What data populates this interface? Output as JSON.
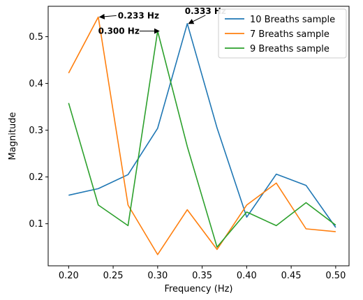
{
  "chart_data": {
    "type": "line",
    "xlabel": "Frequency (Hz)",
    "ylabel": "Magnitude",
    "xlim": [
      0.177,
      0.515
    ],
    "ylim": [
      0.01,
      0.565
    ],
    "x_ticks": [
      0.2,
      0.25,
      0.3,
      0.35,
      0.4,
      0.45,
      0.5
    ],
    "x_tick_labels": [
      "0.20",
      "0.25",
      "0.30",
      "0.35",
      "0.40",
      "0.45",
      "0.50"
    ],
    "y_ticks": [
      0.1,
      0.2,
      0.3,
      0.4,
      0.5
    ],
    "y_tick_labels": [
      "0.1",
      "0.2",
      "0.3",
      "0.4",
      "0.5"
    ],
    "grid": false,
    "legend_position": "top-right",
    "x": [
      0.2,
      0.2333,
      0.2667,
      0.3,
      0.3333,
      0.3667,
      0.4,
      0.4333,
      0.4667,
      0.5
    ],
    "series": [
      {
        "name": "10 Breaths sample",
        "color": "#1f77b4",
        "values": [
          0.161,
          0.175,
          0.205,
          0.304,
          0.528,
          0.305,
          0.114,
          0.206,
          0.182,
          0.092
        ]
      },
      {
        "name": "7 Breaths sample",
        "color": "#ff7f0e",
        "values": [
          0.422,
          0.542,
          0.14,
          0.034,
          0.13,
          0.045,
          0.14,
          0.187,
          0.089,
          0.083
        ]
      },
      {
        "name": "9 Breaths sample",
        "color": "#2ca02c",
        "values": [
          0.358,
          0.14,
          0.096,
          0.512,
          0.265,
          0.05,
          0.125,
          0.096,
          0.145,
          0.097
        ]
      }
    ],
    "annotations": [
      {
        "text": "0.233 Hz",
        "x": 0.2333,
        "y": 0.542
      },
      {
        "text": "0.300 Hz",
        "x": 0.3,
        "y": 0.512
      },
      {
        "text": "0.333 Hz",
        "x": 0.3333,
        "y": 0.528
      }
    ]
  }
}
